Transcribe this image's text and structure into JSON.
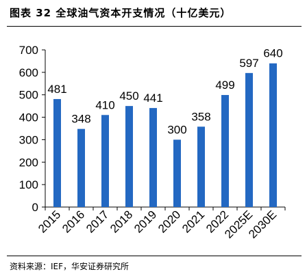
{
  "figure": {
    "title": "图表 32  全球油气资本开支情况（十亿美元）",
    "source": "资料来源：IEF，华安证券研究所"
  },
  "chart_data": {
    "type": "bar",
    "title": "图表 32  全球油气资本开支情况（十亿美元）",
    "xlabel": "",
    "ylabel": "",
    "categories": [
      "2015",
      "2016",
      "2017",
      "2018",
      "2019",
      "2020",
      "2021",
      "2022",
      "2025E",
      "2030E"
    ],
    "values": [
      481,
      348,
      410,
      450,
      441,
      300,
      358,
      499,
      597,
      640
    ],
    "ylim": [
      0,
      700
    ],
    "yticks": [
      0,
      100,
      200,
      300,
      400,
      500,
      600,
      700
    ],
    "grid": false,
    "legend": "none",
    "bar_color": "#2368c2"
  }
}
